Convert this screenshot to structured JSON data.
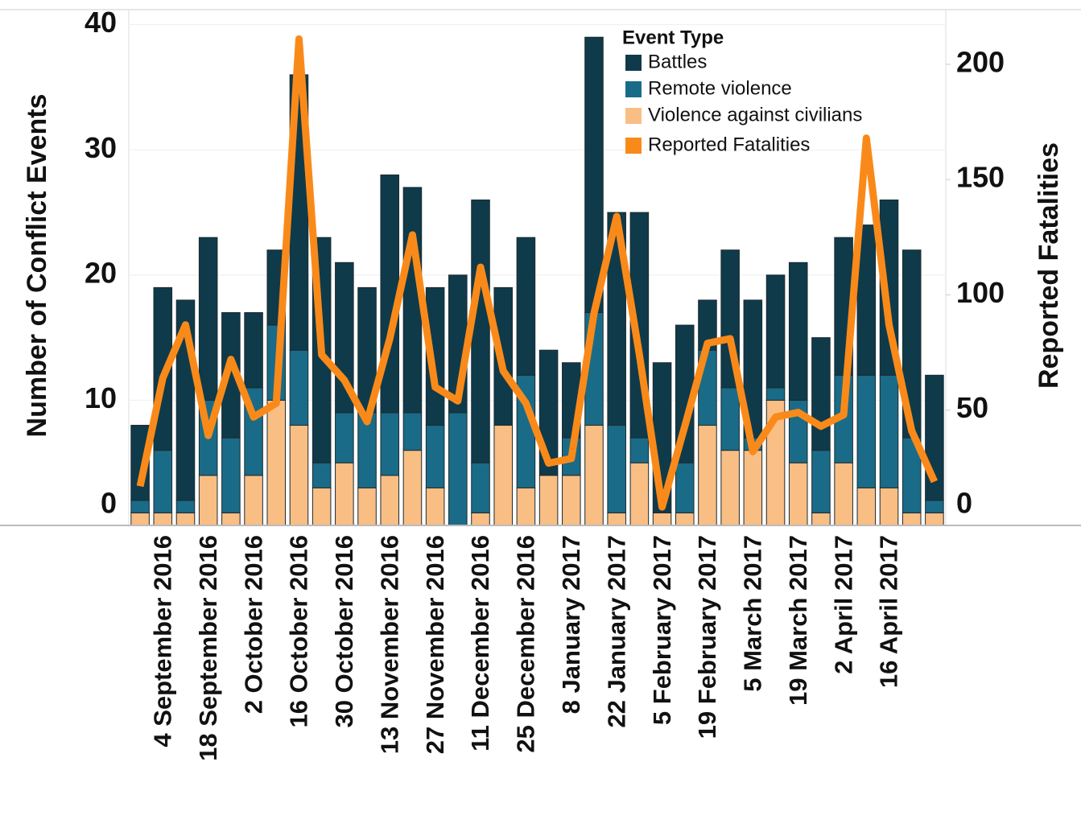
{
  "chart_data": {
    "type": "bar",
    "stacked": true,
    "y_label": "Number of Conflict Events",
    "y2_label": "Reported Fatalities",
    "legend_title": "Event Type",
    "categories": [
      null,
      "4 September 2016",
      null,
      "18 September 2016",
      null,
      "2 October 2016",
      null,
      "16 October 2016",
      null,
      "30 October 2016",
      null,
      "13 November 2016",
      null,
      "27 November 2016",
      null,
      "11 December 2016",
      null,
      "25 December 2016",
      null,
      "8 January 2017",
      null,
      "22 January 2017",
      null,
      "5 February 2017",
      null,
      "19 February 2017",
      null,
      "5 March 2017",
      null,
      "19 March 2017",
      null,
      "2 April 2017",
      null,
      "16 April 2017",
      null,
      null
    ],
    "series": [
      {
        "name": "Violence against civilians",
        "color": "#f9be84",
        "values": [
          1,
          1,
          1,
          4,
          1,
          4,
          10,
          8,
          3,
          5,
          3,
          4,
          6,
          3,
          0,
          1,
          8,
          3,
          4,
          4,
          8,
          1,
          5,
          1,
          1,
          8,
          6,
          6,
          10,
          5,
          1,
          5,
          3,
          3,
          1,
          1
        ]
      },
      {
        "name": "Remote violence",
        "color": "#1a6b87",
        "values": [
          1,
          5,
          1,
          6,
          6,
          7,
          6,
          6,
          2,
          4,
          6,
          5,
          3,
          5,
          9,
          4,
          0,
          9,
          0,
          3,
          9,
          7,
          2,
          0,
          4,
          6,
          5,
          1,
          1,
          5,
          5,
          7,
          9,
          9,
          6,
          1
        ]
      },
      {
        "name": "Battles",
        "color": "#0f3a4a",
        "values": [
          6,
          13,
          16,
          13,
          10,
          6,
          6,
          22,
          18,
          12,
          10,
          19,
          18,
          11,
          11,
          21,
          11,
          11,
          10,
          6,
          22,
          17,
          18,
          12,
          11,
          4,
          11,
          11,
          9,
          11,
          9,
          11,
          12,
          14,
          15,
          10
        ]
      },
      {
        "name": "Reported Fatalities",
        "type": "line",
        "axis": "y2",
        "color": "#f98a1a",
        "values": [
          17,
          64,
          87,
          39,
          72,
          47,
          53,
          211,
          74,
          63,
          45,
          81,
          126,
          60,
          54,
          112,
          67,
          53,
          27,
          29,
          92,
          134,
          74,
          8,
          43,
          79,
          81,
          32,
          47,
          49,
          43,
          48,
          168,
          87,
          41,
          19
        ]
      }
    ],
    "ylim": [
      0,
      41.2
    ],
    "yticks": [
      0,
      10,
      20,
      30,
      40
    ],
    "y2lim": [
      0,
      223.7
    ],
    "y2ticks": [
      0,
      50,
      100,
      150,
      200
    ],
    "grid": true,
    "legend": "top-right"
  }
}
